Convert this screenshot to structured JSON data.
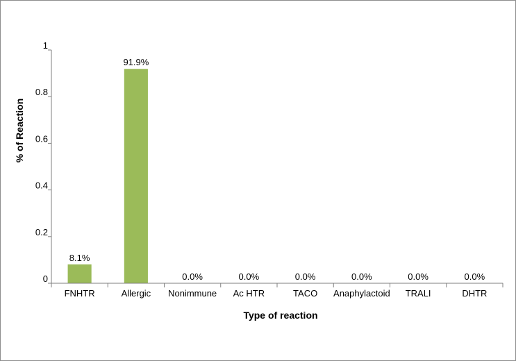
{
  "chart_data": {
    "type": "bar",
    "categories": [
      "FNHTR",
      "Allergic",
      "Nonimmune",
      "Ac HTR",
      "TACO",
      "Anaphylactoid",
      "TRALI",
      "DHTR"
    ],
    "values": [
      0.081,
      0.919,
      0,
      0,
      0,
      0,
      0,
      0
    ],
    "data_labels": [
      "8.1%",
      "91.9%",
      "0.0%",
      "0.0%",
      "0.0%",
      "0.0%",
      "0.0%",
      "0.0%"
    ],
    "xlabel": "Type of reaction",
    "ylabel": "% of Reaction",
    "ylim": [
      0,
      1
    ],
    "yticks": [
      0,
      0.2,
      0.4,
      0.6,
      0.8,
      1
    ],
    "ytick_labels": [
      "0",
      "0.2",
      "0.4",
      "0.6",
      "0.8",
      "1"
    ],
    "grid": false,
    "legend": "none",
    "bar_color": "#9bbb59"
  }
}
